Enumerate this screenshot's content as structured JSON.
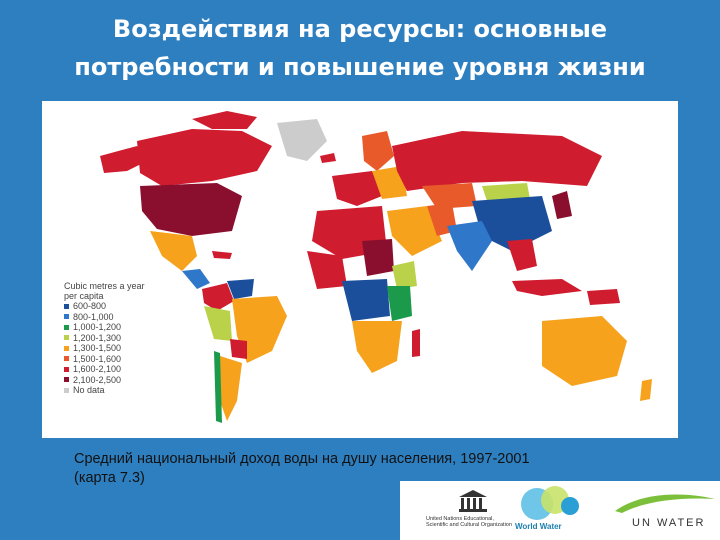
{
  "title": {
    "line1": "Воздействия на ресурсы: основные",
    "line2": "потребности и повышение уровня жизни"
  },
  "map": {
    "legend_title_line1": "Cubic metres a year",
    "legend_title_line2": "per capita",
    "legend": [
      {
        "label": "600-800",
        "color": "#1b4f9c"
      },
      {
        "label": "800-1,000",
        "color": "#2f77c9"
      },
      {
        "label": "1,000-1,200",
        "color": "#1a9a4a"
      },
      {
        "label": "1,200-1,300",
        "color": "#b9d24a"
      },
      {
        "label": "1,300-1,500",
        "color": "#f6a21c"
      },
      {
        "label": "1,500-1,600",
        "color": "#e85a2a"
      },
      {
        "label": "1,600-2,100",
        "color": "#cf1c2e"
      },
      {
        "label": "2,100-2,500",
        "color": "#8a0f2f"
      },
      {
        "label": "No data",
        "color": "#cccccc"
      }
    ]
  },
  "caption": {
    "line1": "Средний национальный доход воды на душу населения, 1997-2001",
    "line2": "(карта 7.3)"
  },
  "logos": {
    "unesco_line1": "United Nations Educational,",
    "unesco_line2": "Scientific and Cultural Organization",
    "wwap_label": "World Water",
    "unwater_label": "UN WATER"
  }
}
